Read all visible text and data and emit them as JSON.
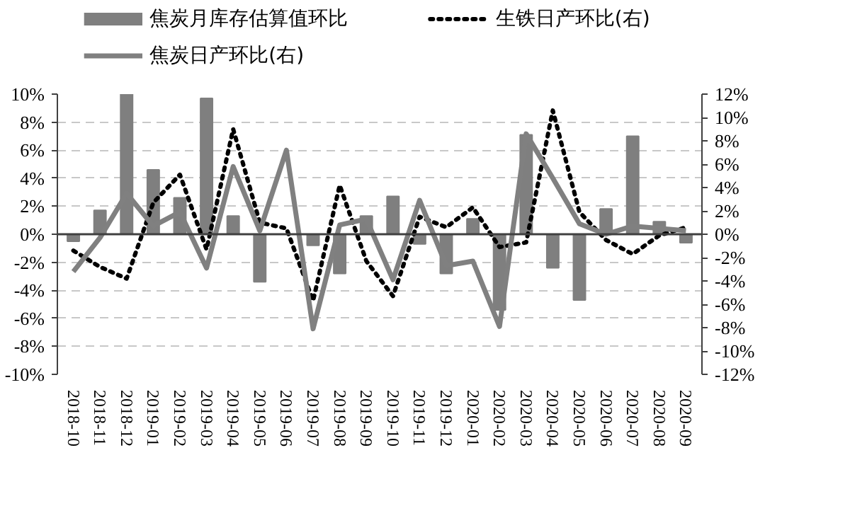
{
  "chart_data": {
    "type": "bar",
    "categories": [
      "2018-10",
      "2018-11",
      "2018-12",
      "2019-01",
      "2019-02",
      "2019-03",
      "2019-04",
      "2019-05",
      "2019-06",
      "2019-07",
      "2019-08",
      "2019-09",
      "2019-10",
      "2019-11",
      "2019-12",
      "2020-01",
      "2020-02",
      "2020-03",
      "2020-04",
      "2020-05",
      "2020-06",
      "2020-07",
      "2020-08",
      "2020-09"
    ],
    "series": [
      {
        "name": "焦炭月库存估算值环比",
        "color": "#7f7f7f",
        "values": [
          -0.5,
          1.7,
          10,
          4.6,
          2.6,
          9.7,
          1.3,
          -3.4,
          0,
          -0.8,
          -2.8,
          1.3,
          2.7,
          -0.7,
          -2.8,
          1.1,
          -5.4,
          7.1,
          -2.4,
          -4.7,
          1.8,
          7.0,
          0.9,
          -0.6
        ]
      },
      {
        "name": "生铁日产环比(右)",
        "type": "line",
        "axis": "y2",
        "color": "#000000",
        "line_style": "dotted",
        "values": [
          -1.4,
          -2.8,
          -3.8,
          2.7,
          5.1,
          -1.3,
          9.0,
          1.0,
          0.5,
          -5.7,
          4.2,
          -2.3,
          -5.3,
          1.5,
          0.6,
          2.3,
          -1.1,
          -0.7,
          10.6,
          1.9,
          -0.5,
          -1.7,
          -0.1,
          0.6
        ]
      },
      {
        "name": "焦炭日产环比(右)",
        "type": "line",
        "axis": "y2",
        "color": "#808080",
        "line_style": "solid",
        "values": [
          -3.2,
          -0.3,
          3.5,
          0.7,
          1.9,
          -2.9,
          5.8,
          0.3,
          7.2,
          -8.1,
          0.8,
          1.3,
          -3.9,
          2.9,
          -2.7,
          -2.3,
          -7.9,
          8.6,
          4.8,
          0.9,
          0,
          0.7,
          0.5,
          0.3
        ]
      }
    ],
    "ylim": [
      -10,
      10
    ],
    "yticks": [
      {
        "value": -10,
        "label": "-10%"
      },
      {
        "value": -8,
        "label": "-8%"
      },
      {
        "value": -6,
        "label": "-6%"
      },
      {
        "value": -4,
        "label": "-4%"
      },
      {
        "value": -2,
        "label": "-2%"
      },
      {
        "value": 0,
        "label": "0%"
      },
      {
        "value": 2,
        "label": "2%"
      },
      {
        "value": 4,
        "label": "4%"
      },
      {
        "value": 6,
        "label": "6%"
      },
      {
        "value": 8,
        "label": "8%"
      },
      {
        "value": 10,
        "label": "10%"
      }
    ],
    "y2lim": [
      -12,
      12
    ],
    "y2ticks": [
      {
        "value": -12,
        "label": "-12%"
      },
      {
        "value": -10,
        "label": "-10%"
      },
      {
        "value": -8,
        "label": "-8%"
      },
      {
        "value": -6,
        "label": "-6%"
      },
      {
        "value": -4,
        "label": "-4%"
      },
      {
        "value": -2,
        "label": "-2%"
      },
      {
        "value": 0,
        "label": "0%"
      },
      {
        "value": 2,
        "label": "2%"
      },
      {
        "value": 4,
        "label": "4%"
      },
      {
        "value": 6,
        "label": "6%"
      },
      {
        "value": 8,
        "label": "8%"
      },
      {
        "value": 10,
        "label": "10%"
      },
      {
        "value": 12,
        "label": "12%"
      }
    ],
    "grid": "y",
    "legend": "top"
  }
}
